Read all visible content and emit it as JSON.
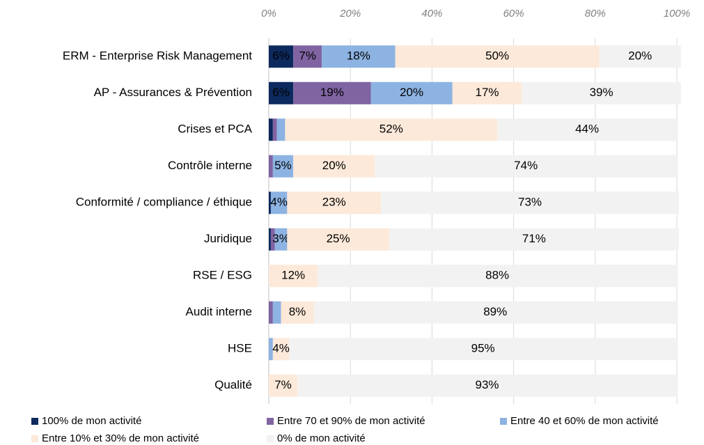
{
  "chart_data": {
    "type": "stacked_hbar",
    "categories": [
      "ERM - Enterprise Risk Management",
      "AP - Assurances & Prévention",
      "Crises et PCA",
      "Contrôle interne",
      "Conformité / compliance / éthique",
      "Juridique",
      "RSE / ESG",
      "Audit interne",
      "HSE",
      "Qualité"
    ],
    "series": [
      {
        "name": "100% de mon activité",
        "color": "#0d2a5e",
        "values": [
          6,
          6,
          1,
          0,
          0.5,
          0.5,
          0,
          0,
          0,
          0
        ],
        "value_labels": [
          "6%",
          "6%",
          null,
          null,
          null,
          null,
          null,
          null,
          null,
          null
        ]
      },
      {
        "name": "Entre 70 et 90% de mon activité",
        "color": "#8064a2",
        "values": [
          7,
          19,
          1,
          1,
          0,
          1,
          0,
          1,
          0,
          0
        ],
        "value_labels": [
          "7%",
          "19%",
          null,
          null,
          null,
          null,
          null,
          null,
          null,
          null
        ]
      },
      {
        "name": "Entre 40 et 60% de mon activité",
        "color": "#8db3e2",
        "values": [
          18,
          20,
          2,
          5,
          4,
          3,
          0,
          2,
          1,
          0
        ],
        "value_labels": [
          "18%",
          "20%",
          null,
          "5%",
          "4%",
          "3%",
          null,
          null,
          null,
          null
        ]
      },
      {
        "name": "Entre 10% et 30% de mon activité",
        "color": "#fde9d9",
        "values": [
          50,
          17,
          52,
          20,
          23,
          25,
          12,
          8,
          4,
          7
        ],
        "value_labels": [
          "50%",
          "17%",
          "52%",
          "20%",
          "23%",
          "25%",
          "12%",
          "8%",
          "4%",
          "7%"
        ]
      },
      {
        "name": "0% de mon activité",
        "color": "#f2f2f2",
        "values": [
          20,
          39,
          44,
          74,
          73,
          71,
          88,
          89,
          95,
          93
        ],
        "value_labels": [
          "20%",
          "39%",
          "44%",
          "74%",
          "73%",
          "71%",
          "88%",
          "89%",
          "95%",
          "93%"
        ]
      }
    ],
    "xlim": [
      0,
      100
    ],
    "xticks": [
      {
        "value": 0,
        "label": "0%"
      },
      {
        "value": 20,
        "label": "20%"
      },
      {
        "value": 40,
        "label": "40%"
      },
      {
        "value": 60,
        "label": "60%"
      },
      {
        "value": 80,
        "label": "80%"
      },
      {
        "value": 100,
        "label": "100%"
      }
    ],
    "grid": true
  }
}
